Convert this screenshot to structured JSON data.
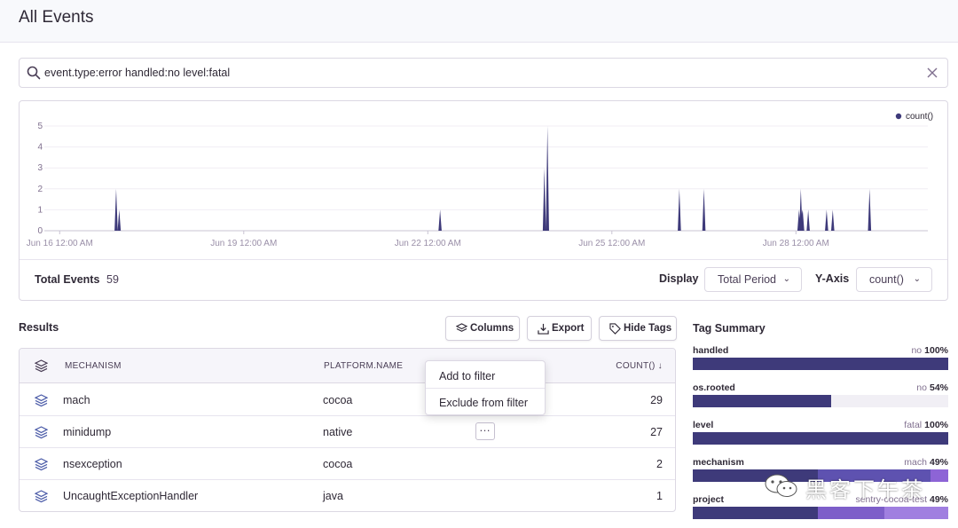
{
  "page": {
    "title": "All Events"
  },
  "search": {
    "query": "event.type:error handled:no level:fatal"
  },
  "chart": {
    "legend_label": "count()",
    "footer": {
      "total_label": "Total Events",
      "total_value": "59",
      "display_label": "Display",
      "display_value": "Total Period",
      "yaxis_label": "Y-Axis",
      "yaxis_value": "count()"
    }
  },
  "chart_data": {
    "type": "area",
    "series": [
      {
        "name": "count()",
        "points": [
          [
            16.92,
            2
          ],
          [
            16.97,
            1
          ],
          [
            22.2,
            1
          ],
          [
            23.9,
            3
          ],
          [
            23.95,
            5
          ],
          [
            26.1,
            2
          ],
          [
            28.05,
            1
          ],
          [
            28.08,
            2
          ],
          [
            28.1,
            1
          ],
          [
            28.11,
            1
          ],
          [
            26.5,
            2
          ],
          [
            28.2,
            1
          ],
          [
            28.6,
            1
          ],
          [
            28.5,
            1
          ],
          [
            29.2,
            2
          ]
        ]
      }
    ],
    "x_ticks": [
      "Jun 16 12:00 AM",
      "Jun 19 12:00 AM",
      "Jun 22 12:00 AM",
      "Jun 25 12:00 AM",
      "Jun 28 12:00 AM"
    ],
    "y_ticks": [
      "0",
      "1",
      "2",
      "3",
      "4",
      "5"
    ],
    "ylim": [
      0,
      5
    ],
    "legend": "top-right",
    "color": "#3e3a7a"
  },
  "results": {
    "title": "Results",
    "buttons": {
      "columns": "Columns",
      "export": "Export",
      "hide_tags": "Hide Tags"
    },
    "headers": {
      "mechanism": "MECHANISM",
      "platform": "PLATFORM.NAME",
      "count": "COUNT() ↓"
    },
    "rows": [
      {
        "mechanism": "mach",
        "platform": "cocoa",
        "count": "29"
      },
      {
        "mechanism": "minidump",
        "platform": "native",
        "count": "27"
      },
      {
        "mechanism": "nsexception",
        "platform": "cocoa",
        "count": "2"
      },
      {
        "mechanism": "UncaughtExceptionHandler",
        "platform": "java",
        "count": "1"
      }
    ],
    "context_menu": {
      "add": "Add to filter",
      "exclude": "Exclude from filter"
    },
    "dots_label": "…"
  },
  "tags": {
    "title": "Tag Summary",
    "items": [
      {
        "key": "handled",
        "value": "no",
        "pct": "100%",
        "fill": 1.0
      },
      {
        "key": "os.rooted",
        "value": "no",
        "pct": "54%",
        "fill": 0.54
      },
      {
        "key": "level",
        "value": "fatal",
        "pct": "100%",
        "fill": 1.0
      },
      {
        "key": "mechanism",
        "value": "mach",
        "pct": "49%",
        "fill": 0.49
      },
      {
        "key": "project",
        "value": "sentry-cocoa-test",
        "pct": "49%",
        "fill": 0.49
      }
    ]
  },
  "watermark": {
    "text": "黑客下午茶"
  },
  "colors": {
    "accent": "#3e3a7a",
    "secondary": "#7d5ec9",
    "tertiary": "#a07fe0",
    "border": "#dcd8e3"
  }
}
